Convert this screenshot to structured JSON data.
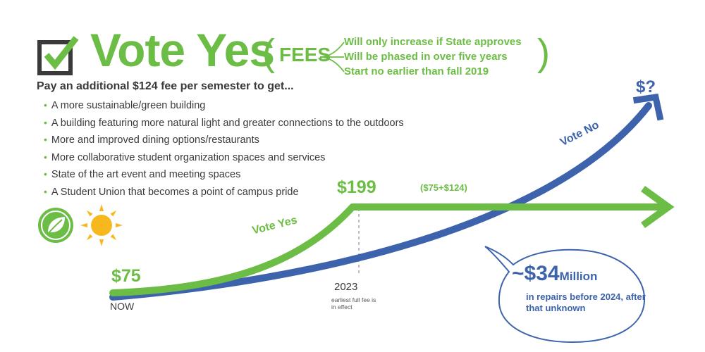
{
  "header": {
    "headline": "Vote Yes",
    "fees_label": "FEES",
    "fee_notes": [
      "Will only increase if State approves",
      "Will be phased in over five years",
      "Start no earlier than fall 2019"
    ]
  },
  "benefits": {
    "intro": "Pay an additional $124 fee per semester to get...",
    "items": [
      "A more sustainable/green building",
      "A building featuring more natural light and greater connections to the outdoors",
      "More and improved dining options/restaurants",
      "More collaborative student organization spaces and services",
      "State of the art event and meeting spaces",
      "A Student Union that becomes a point of campus pride"
    ]
  },
  "timeline": {
    "now_price": "$75",
    "now_label": "NOW",
    "future_price": "$199",
    "breakdown": "($75+$124)",
    "year": "2023",
    "year_note": "earliest full fee is in effect",
    "vote_yes_label": "Vote Yes",
    "vote_no_label": "Vote No",
    "unknown_cost": "$?"
  },
  "repairs": {
    "prefix": "~",
    "amount": "$34",
    "unit": "Million",
    "note": "in repairs before 2024, after that unknown"
  },
  "colors": {
    "green": "#6cbd45",
    "blue": "#3d63ad",
    "text": "#3a3a3a"
  },
  "icons": [
    "checkbox-check-icon",
    "leaf-icon",
    "sun-icon"
  ]
}
